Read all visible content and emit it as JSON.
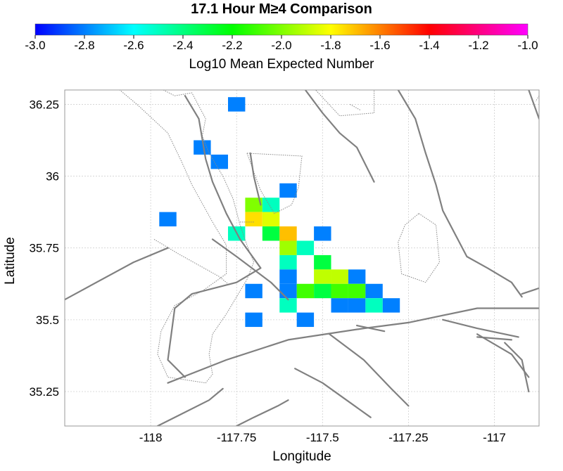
{
  "chart_data": {
    "type": "heatmap",
    "title": "17.1 Hour M≥4 Comparison",
    "xlabel": "Longitude",
    "ylabel": "Latitude",
    "xlim": [
      -118.25,
      -116.87
    ],
    "ylim": [
      35.13,
      36.3
    ],
    "x_ticks": [
      -118,
      -117.75,
      -117.5,
      -117.25,
      -117
    ],
    "x_tick_labels": [
      "-118",
      "-117.75",
      "-117.5",
      "-117.25",
      "-117"
    ],
    "y_ticks": [
      35.25,
      35.5,
      35.75,
      36,
      36.25
    ],
    "y_tick_labels": [
      "35.25",
      "35.5",
      "35.75",
      "36",
      "36.25"
    ],
    "grid": true,
    "cell_size_deg": 0.05,
    "colorbar": {
      "label": "Log10 Mean Expected Number",
      "range": [
        -3.0,
        -1.0
      ],
      "ticks": [
        -3.0,
        -2.8,
        -2.6,
        -2.4,
        -2.2,
        -2.0,
        -1.8,
        -1.6,
        -1.4,
        -1.2,
        -1.0
      ],
      "tick_labels": [
        "-3.0",
        "-2.8",
        "-2.6",
        "-2.4",
        "-2.2",
        "-2.0",
        "-1.8",
        "-1.6",
        "-1.4",
        "-1.2",
        "-1.0"
      ],
      "colors": [
        "#0000ff",
        "#00ffff",
        "#00ff00",
        "#ffff00",
        "#ff0000",
        "#ff00ff"
      ]
    },
    "cells": [
      {
        "lon": -117.75,
        "lat": 36.25,
        "value": -2.8
      },
      {
        "lon": -117.85,
        "lat": 36.1,
        "value": -2.8
      },
      {
        "lon": -117.8,
        "lat": 36.05,
        "value": -2.8
      },
      {
        "lon": -117.6,
        "lat": 35.95,
        "value": -2.8
      },
      {
        "lon": -117.7,
        "lat": 35.9,
        "value": -2.0
      },
      {
        "lon": -117.65,
        "lat": 35.9,
        "value": -2.5
      },
      {
        "lon": -117.7,
        "lat": 35.85,
        "value": -1.75
      },
      {
        "lon": -117.65,
        "lat": 35.85,
        "value": -1.85
      },
      {
        "lon": -117.95,
        "lat": 35.85,
        "value": -2.8
      },
      {
        "lon": -117.75,
        "lat": 35.8,
        "value": -2.5
      },
      {
        "lon": -117.65,
        "lat": 35.8,
        "value": -2.3
      },
      {
        "lon": -117.6,
        "lat": 35.8,
        "value": -1.7
      },
      {
        "lon": -117.5,
        "lat": 35.8,
        "value": -2.8
      },
      {
        "lon": -117.6,
        "lat": 35.75,
        "value": -1.95
      },
      {
        "lon": -117.55,
        "lat": 35.75,
        "value": -2.5
      },
      {
        "lon": -117.6,
        "lat": 35.7,
        "value": -2.5
      },
      {
        "lon": -117.5,
        "lat": 35.7,
        "value": -2.3
      },
      {
        "lon": -117.6,
        "lat": 35.65,
        "value": -2.8
      },
      {
        "lon": -117.5,
        "lat": 35.65,
        "value": -1.9
      },
      {
        "lon": -117.45,
        "lat": 35.65,
        "value": -1.9
      },
      {
        "lon": -117.4,
        "lat": 35.65,
        "value": -2.8
      },
      {
        "lon": -117.7,
        "lat": 35.6,
        "value": -2.8
      },
      {
        "lon": -117.6,
        "lat": 35.6,
        "value": -2.8
      },
      {
        "lon": -117.55,
        "lat": 35.6,
        "value": -2.1
      },
      {
        "lon": -117.5,
        "lat": 35.6,
        "value": -2.3
      },
      {
        "lon": -117.45,
        "lat": 35.6,
        "value": -2.1
      },
      {
        "lon": -117.4,
        "lat": 35.6,
        "value": -2.1
      },
      {
        "lon": -117.35,
        "lat": 35.6,
        "value": -2.8
      },
      {
        "lon": -117.6,
        "lat": 35.55,
        "value": -2.5
      },
      {
        "lon": -117.45,
        "lat": 35.55,
        "value": -2.8
      },
      {
        "lon": -117.4,
        "lat": 35.55,
        "value": -2.8
      },
      {
        "lon": -117.35,
        "lat": 35.55,
        "value": -2.5
      },
      {
        "lon": -117.3,
        "lat": 35.55,
        "value": -2.8
      },
      {
        "lon": -117.7,
        "lat": 35.5,
        "value": -2.8
      },
      {
        "lon": -117.55,
        "lat": 35.5,
        "value": -2.8
      }
    ],
    "faults": [
      [
        [
          -118.25,
          35.57
        ],
        [
          -118.05,
          35.7
        ],
        [
          -117.95,
          35.75
        ]
      ],
      [
        [
          -117.95,
          35.28
        ],
        [
          -117.78,
          35.36
        ],
        [
          -117.6,
          35.43
        ],
        [
          -117.38,
          35.47
        ],
        [
          -117.25,
          35.49
        ],
        [
          -117.05,
          35.54
        ],
        [
          -116.87,
          35.54
        ]
      ],
      [
        [
          -117.82,
          35.78
        ],
        [
          -117.75,
          35.72
        ],
        [
          -117.65,
          35.63
        ],
        [
          -117.6,
          35.57
        ]
      ],
      [
        [
          -117.9,
          36.28
        ],
        [
          -117.86,
          36.2
        ],
        [
          -117.85,
          36.13
        ],
        [
          -117.84,
          36.06
        ],
        [
          -117.82,
          35.98
        ],
        [
          -117.78,
          35.87
        ],
        [
          -117.74,
          35.78
        ],
        [
          -117.68,
          35.68
        ],
        [
          -117.75,
          35.63
        ],
        [
          -117.88,
          35.59
        ],
        [
          -117.93,
          35.54
        ],
        [
          -117.94,
          35.45
        ],
        [
          -117.95,
          35.36
        ],
        [
          -117.9,
          35.3
        ]
      ],
      [
        [
          -117.71,
          36.08
        ],
        [
          -117.7,
          36.0
        ],
        [
          -117.68,
          35.9
        ]
      ],
      [
        [
          -117.55,
          36.3
        ],
        [
          -117.5,
          36.22
        ],
        [
          -117.45,
          36.15
        ],
        [
          -117.4,
          36.1
        ],
        [
          -117.35,
          35.98
        ]
      ],
      [
        [
          -117.28,
          36.3
        ],
        [
          -117.23,
          36.2
        ],
        [
          -117.2,
          36.08
        ],
        [
          -117.17,
          35.97
        ],
        [
          -117.15,
          35.88
        ],
        [
          -117.08,
          35.72
        ],
        [
          -117.02,
          35.68
        ],
        [
          -116.95,
          35.63
        ],
        [
          -116.92,
          35.58
        ]
      ],
      [
        [
          -116.92,
          35.59
        ],
        [
          -116.87,
          35.61
        ]
      ],
      [
        [
          -117.15,
          35.5
        ],
        [
          -117.05,
          35.47
        ],
        [
          -116.93,
          35.44
        ]
      ],
      [
        [
          -117.05,
          35.45
        ],
        [
          -116.95,
          35.38
        ],
        [
          -116.9,
          35.3
        ]
      ],
      [
        [
          -116.97,
          35.42
        ],
        [
          -116.92,
          35.36
        ],
        [
          -116.9,
          35.25
        ]
      ],
      [
        [
          -117.98,
          35.13
        ],
        [
          -117.83,
          35.22
        ],
        [
          -117.79,
          35.26
        ]
      ],
      [
        [
          -117.58,
          35.33
        ],
        [
          -117.5,
          35.28
        ],
        [
          -117.43,
          35.22
        ],
        [
          -117.36,
          35.16
        ]
      ],
      [
        [
          -117.48,
          35.45
        ],
        [
          -117.38,
          35.36
        ],
        [
          -117.3,
          35.26
        ],
        [
          -117.25,
          35.2
        ]
      ],
      [
        [
          -117.75,
          35.13
        ],
        [
          -117.7,
          35.16
        ],
        [
          -117.63,
          35.2
        ],
        [
          -117.6,
          35.22
        ]
      ],
      [
        [
          -117.4,
          35.48
        ],
        [
          -117.32,
          35.46
        ]
      ],
      [
        [
          -117.05,
          35.44
        ],
        [
          -116.95,
          35.43
        ]
      ],
      [
        [
          -116.9,
          36.3
        ],
        [
          -116.87,
          36.2
        ]
      ]
    ],
    "dotted_zones": [
      [
        [
          -118.09,
          36.3
        ],
        [
          -117.98,
          36.31
        ],
        [
          -117.93,
          36.28
        ],
        [
          -117.88,
          36.29
        ],
        [
          -117.84,
          36.2
        ],
        [
          -117.85,
          36.14
        ],
        [
          -117.83,
          36.08
        ],
        [
          -117.79,
          36.0
        ],
        [
          -117.76,
          35.92
        ],
        [
          -117.74,
          35.83
        ],
        [
          -117.72,
          35.76
        ],
        [
          -117.7,
          35.7
        ],
        [
          -117.72,
          35.64
        ],
        [
          -117.75,
          35.58
        ],
        [
          -117.78,
          35.52
        ],
        [
          -117.82,
          35.45
        ],
        [
          -117.83,
          35.38
        ],
        [
          -117.82,
          35.31
        ],
        [
          -117.84,
          35.28
        ],
        [
          -117.95,
          35.3
        ],
        [
          -117.98,
          35.38
        ],
        [
          -117.97,
          35.46
        ],
        [
          -117.93,
          35.55
        ],
        [
          -117.85,
          35.6
        ],
        [
          -117.78,
          35.66
        ],
        [
          -117.78,
          35.76
        ],
        [
          -117.82,
          35.84
        ],
        [
          -117.88,
          35.97
        ],
        [
          -117.91,
          36.05
        ],
        [
          -117.95,
          36.15
        ],
        [
          -118.04,
          36.25
        ],
        [
          -118.09,
          36.3
        ]
      ],
      [
        [
          -117.72,
          36.08
        ],
        [
          -117.56,
          36.07
        ],
        [
          -117.57,
          35.96
        ],
        [
          -117.59,
          35.9
        ],
        [
          -117.64,
          35.87
        ],
        [
          -117.68,
          35.95
        ],
        [
          -117.72,
          36.08
        ]
      ],
      [
        [
          -117.52,
          36.3
        ],
        [
          -117.35,
          36.3
        ],
        [
          -117.35,
          36.22
        ],
        [
          -117.45,
          36.21
        ],
        [
          -117.52,
          36.3
        ]
      ],
      [
        [
          -117.22,
          35.87
        ],
        [
          -117.17,
          35.83
        ],
        [
          -117.16,
          35.7
        ],
        [
          -117.2,
          35.63
        ],
        [
          -117.27,
          35.66
        ],
        [
          -117.28,
          35.77
        ],
        [
          -117.26,
          35.83
        ],
        [
          -117.22,
          35.87
        ]
      ],
      [
        [
          -117.99,
          35.78
        ],
        [
          -117.92,
          35.73
        ],
        [
          -117.8,
          35.65
        ],
        [
          -117.77,
          35.62
        ]
      ]
    ],
    "dotted_lines": [
      [
        [
          -117.74,
          35.84
        ],
        [
          -117.7,
          35.84
        ]
      ],
      [
        [
          -117.42,
          36.25
        ],
        [
          -117.39,
          36.23
        ]
      ],
      [
        [
          -116.87,
          36.28
        ],
        [
          -116.88,
          36.26
        ]
      ]
    ]
  }
}
